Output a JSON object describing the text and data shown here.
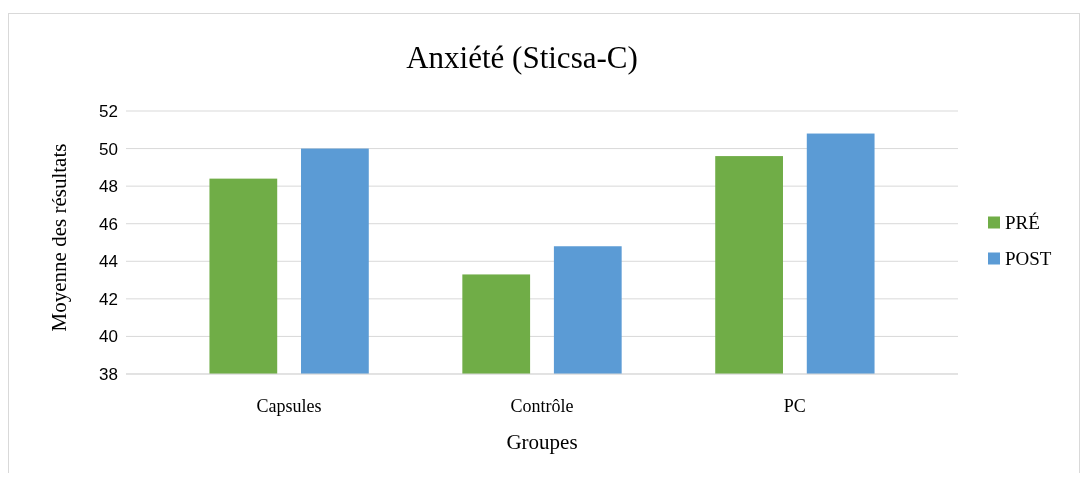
{
  "chart_data": {
    "type": "bar",
    "title": "Anxiété (Sticsa-C)",
    "xlabel": "Groupes",
    "ylabel": "Moyenne des résultats",
    "categories": [
      "Capsules",
      "Contrôle",
      "PC"
    ],
    "series": [
      {
        "name": "PRÉ",
        "color": "#70ad47",
        "values": [
          48.4,
          43.3,
          49.6
        ]
      },
      {
        "name": "POST",
        "color": "#5b9bd5",
        "values": [
          50.0,
          44.8,
          50.8
        ]
      }
    ],
    "ylim": [
      38,
      52
    ],
    "yticks": [
      38,
      40,
      42,
      44,
      46,
      48,
      50,
      52
    ],
    "grid": "y",
    "legend": "right"
  }
}
